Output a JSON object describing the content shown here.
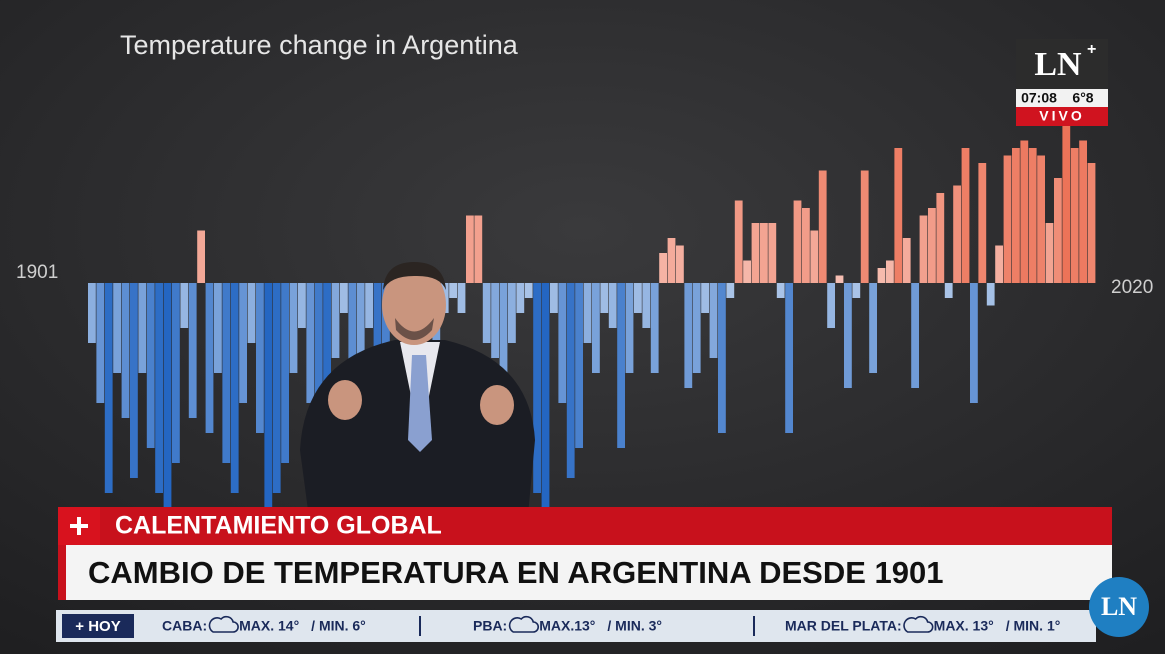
{
  "chart": {
    "title": "Temperature change in Argentina",
    "start_label": "1901",
    "end_label": "2020",
    "warm_color": "#e8512f",
    "cool_color": "#2466c2",
    "values": [
      -0.4,
      -0.8,
      -1.4,
      -0.6,
      -0.9,
      -1.3,
      -0.6,
      -1.1,
      -1.4,
      -1.5,
      -1.2,
      -0.3,
      -0.9,
      0.35,
      -1.0,
      -0.6,
      -1.2,
      -1.4,
      -0.8,
      -0.4,
      -1.0,
      -1.5,
      -1.4,
      -1.2,
      -0.6,
      -0.3,
      -0.8,
      -1.2,
      -1.4,
      -0.5,
      -0.2,
      -0.9,
      -0.6,
      -0.3,
      -1.3,
      -1.1,
      -0.2,
      -0.5,
      -0.8,
      -0.4,
      -0.3,
      -0.6,
      -0.2,
      -0.1,
      -0.2,
      0.45,
      0.45,
      -0.4,
      -0.5,
      -0.6,
      -0.4,
      -0.2,
      -0.1,
      -1.4,
      -1.5,
      -0.2,
      -0.8,
      -1.3,
      -1.1,
      -0.4,
      -0.6,
      -0.2,
      -0.3,
      -1.1,
      -0.6,
      -0.2,
      -0.3,
      -0.6,
      0.2,
      0.3,
      0.25,
      -0.7,
      -0.6,
      -0.2,
      -0.5,
      -1.0,
      -0.1,
      0.55,
      0.15,
      0.4,
      0.4,
      0.4,
      -0.1,
      -1.0,
      0.55,
      0.5,
      0.35,
      0.75,
      -0.3,
      0.05,
      -0.7,
      -0.1,
      0.75,
      -0.6,
      0.1,
      0.15,
      0.9,
      0.3,
      -0.7,
      0.45,
      0.5,
      0.6,
      -0.1,
      0.65,
      0.9,
      -0.8,
      0.8,
      -0.15,
      0.25,
      0.85,
      0.9,
      0.95,
      0.9,
      0.85,
      0.4,
      0.7,
      1.05,
      0.9,
      0.95,
      0.8
    ]
  },
  "logo": {
    "brand": "LN",
    "plus": "+",
    "time": "07:08",
    "temp": "6°8",
    "live": "VIVO"
  },
  "lower_third": {
    "tag": "CALENTAMIENTO GLOBAL",
    "headline": "CAMBIO DE TEMPERATURA EN ARGENTINA DESDE 1901"
  },
  "ticker": {
    "label": "+ HOY",
    "items": [
      {
        "city": "CABA:",
        "max": "MAX. 14°",
        "min": "/ MIN. 6°"
      },
      {
        "city": "PBA:",
        "max": "MAX.13°",
        "min": "/ MIN. 3°"
      },
      {
        "city": "MAR DEL PLATA:",
        "max": "MAX. 13°",
        "min": "/ MIN. 1°"
      }
    ]
  },
  "corner_logo": "LN"
}
